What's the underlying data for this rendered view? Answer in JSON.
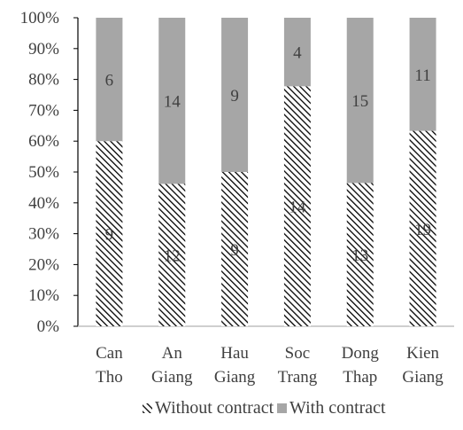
{
  "chart_data": {
    "type": "bar",
    "stacked": "percent",
    "categories": [
      [
        "Can",
        "Tho"
      ],
      [
        "An",
        "Giang"
      ],
      [
        "Hau",
        "Giang"
      ],
      [
        "Soc",
        "Trang"
      ],
      [
        "Dong",
        "Thap"
      ],
      [
        "Kien",
        "Giang"
      ]
    ],
    "series": [
      {
        "name": "Without contract",
        "values": [
          9,
          12,
          9,
          14,
          13,
          19
        ],
        "pattern": "diagonal-hatch",
        "color": "#000000"
      },
      {
        "name": "With contract",
        "values": [
          6,
          14,
          9,
          4,
          15,
          11
        ],
        "color": "#a6a6a6"
      }
    ],
    "ylim": [
      0,
      100
    ],
    "yticks": [
      "0%",
      "10%",
      "20%",
      "30%",
      "40%",
      "50%",
      "60%",
      "70%",
      "80%",
      "90%",
      "100%"
    ],
    "legend_position": "bottom",
    "grid": false
  }
}
